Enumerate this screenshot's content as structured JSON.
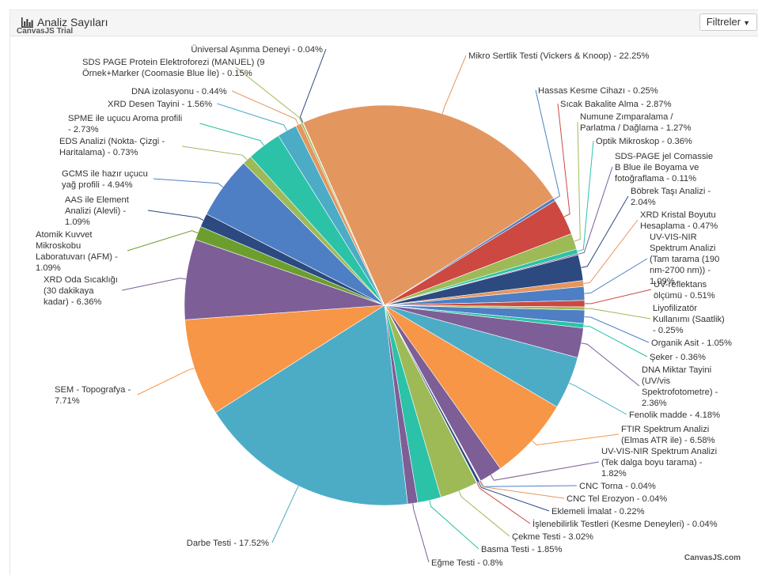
{
  "header": {
    "title": "Analiz Sayıları",
    "filter_label": "Filtreler"
  },
  "watermark": {
    "trial": "CanvasJS Trial",
    "brand": "CanvasJS.com"
  },
  "colors": {
    "header_bg": "#f5f5f5",
    "label_text": "#333333"
  },
  "chart_data": {
    "type": "pie",
    "title": "Analiz Sayıları",
    "start_angle_deg": 246,
    "unit": "%",
    "slices": [
      {
        "name": "Mikro Sertlik Testi (Vickers & Knoop)",
        "value": 22.25,
        "color": "#E4965F",
        "label": [
          "Mikro Sertlik Testi (Vickers & Knoop) - 22.25%"
        ]
      },
      {
        "name": "Hassas Kesme Cihazı",
        "value": 0.25,
        "color": "#4E7FC4",
        "label": [
          "Hassas Kesme Cihazı - 0.25%"
        ]
      },
      {
        "name": "Sıcak Bakalite Alma",
        "value": 2.87,
        "color": "#CC4840",
        "label": [
          "Sıcak Bakalite Alma - 2.87%"
        ]
      },
      {
        "name": "Numune Zımparalama / Parlatma / Dağlama",
        "value": 1.27,
        "color": "#9DBA57",
        "label": [
          "Numune Zımparalama /",
          "Parlatma / Dağlama - 1.27%"
        ]
      },
      {
        "name": "Optik Mikroskop",
        "value": 0.36,
        "color": "#2BC2A8",
        "label": [
          "Optik Mikroskop - 0.36%"
        ]
      },
      {
        "name": "SDS-PAGE jel Comassie B Blue ile Boyama ve fotoğraflama",
        "value": 0.11,
        "color": "#7E5E96",
        "label": [
          "SDS-PAGE jel Comassie",
          "B Blue ile Boyama ve",
          "fotoğraflama - 0.11%"
        ]
      },
      {
        "name": "Böbrek Taşı Analizi",
        "value": 2.04,
        "color": "#2C4A80",
        "label": [
          "Böbrek Taşı Analizi -",
          "2.04%"
        ]
      },
      {
        "name": "XRD Kristal Boyutu Hesaplama",
        "value": 0.47,
        "color": "#E4965F",
        "label": [
          "XRD Kristal Boyutu",
          "Hesaplama - 0.47%"
        ]
      },
      {
        "name": "UV-VIS-NIR Spektrum Analizi (Tam tarama (190 nm-2700 nm))",
        "value": 1.09,
        "color": "#4E7FC4",
        "label": [
          "UV-VIS-NIR",
          "Spektrum Analizi",
          "(Tam tarama (190",
          "nm-2700 nm)) -",
          "1.09%"
        ]
      },
      {
        "name": "UV-reflektans ölçümü",
        "value": 0.51,
        "color": "#CC4840",
        "label": [
          "UV-reflektans",
          "ölçümü - 0.51%"
        ]
      },
      {
        "name": "Liyofilizatör Kullanımı (Saatlik)",
        "value": 0.25,
        "color": "#9DBA57",
        "label": [
          "Liyofilizatör",
          "Kullanımı (Saatlik)",
          "- 0.25%"
        ]
      },
      {
        "name": "Organik Asit",
        "value": 1.05,
        "color": "#4E7FC4",
        "label": [
          "Organik Asit - 1.05%"
        ]
      },
      {
        "name": "Şeker",
        "value": 0.36,
        "color": "#2BC2A8",
        "label": [
          "Şeker - 0.36%"
        ]
      },
      {
        "name": "DNA Miktar Tayini (UV/vis Spektrofotometre)",
        "value": 2.36,
        "color": "#7E5E96",
        "label": [
          "DNA Miktar Tayini",
          "(UV/vis",
          "Spektrofotometre) -",
          "2.36%"
        ]
      },
      {
        "name": "Fenolik madde",
        "value": 4.18,
        "color": "#4CACC6",
        "label": [
          "Fenolik madde - 4.18%"
        ]
      },
      {
        "name": "FTIR Spektrum Analizi (Elmas ATR ile)",
        "value": 6.58,
        "color": "#F79646",
        "label": [
          "FTIR Spektrum Analizi",
          "(Elmas ATR ile) - 6.58%"
        ]
      },
      {
        "name": "UV-VIS-NIR Spektrum Analizi (Tek dalga boyu tarama)",
        "value": 1.82,
        "color": "#7E5E96",
        "label": [
          "UV-VIS-NIR Spektrum Analizi",
          "(Tek dalga boyu tarama) -",
          "1.82%"
        ]
      },
      {
        "name": "CNC Torna",
        "value": 0.04,
        "color": "#4E7FC4",
        "label": [
          "CNC Torna - 0.04%"
        ]
      },
      {
        "name": "CNC Tel Erozyon",
        "value": 0.04,
        "color": "#E4965F",
        "label": [
          "CNC Tel Erozyon - 0.04%"
        ]
      },
      {
        "name": "Eklemeli İmalat",
        "value": 0.22,
        "color": "#2C4A80",
        "label": [
          "Eklemeli İmalat - 0.22%"
        ]
      },
      {
        "name": "İşlenebilirlik Testleri (Kesme Deneyleri)",
        "value": 0.04,
        "color": "#CC4840",
        "label": [
          "İşlenebilirlik Testleri (Kesme Deneyleri) - 0.04%"
        ]
      },
      {
        "name": "Çekme Testi",
        "value": 3.02,
        "color": "#9DBA57",
        "label": [
          "Çekme Testi - 3.02%"
        ]
      },
      {
        "name": "Basma Testi",
        "value": 1.85,
        "color": "#2BC2A8",
        "label": [
          "Basma Testi - 1.85%"
        ]
      },
      {
        "name": "Eğme Testi",
        "value": 0.8,
        "color": "#7E5E96",
        "label": [
          "Eğme Testi - 0.8%"
        ]
      },
      {
        "name": "Darbe Testi",
        "value": 17.52,
        "color": "#4CACC6",
        "label": [
          "Darbe Testi - 17.52%"
        ]
      },
      {
        "name": "SEM - Topografya",
        "value": 7.71,
        "color": "#F79646",
        "label": [
          "SEM - Topografya -",
          "7.71%"
        ]
      },
      {
        "name": "XRD Oda Sıcaklığı (30 dakikaya kadar)",
        "value": 6.36,
        "color": "#7E5E96",
        "label": [
          "XRD Oda Sıcaklığı",
          "(30 dakikaya",
          "kadar) - 6.36%"
        ]
      },
      {
        "name": "Atomik Kuvvet Mikroskobu Laboratuvarı (AFM)",
        "value": 1.09,
        "color": "#6C9E2E",
        "label": [
          "Atomik Kuvvet",
          "Mikroskobu",
          "Laboratuvarı (AFM) -",
          "1.09%"
        ]
      },
      {
        "name": "AAS ile Element Analizi (Alevli)",
        "value": 1.09,
        "color": "#2C4A80",
        "label": [
          "AAS ile Element",
          "Analizi (Alevli) -",
          "1.09%"
        ]
      },
      {
        "name": "GCMS ile hazır uçucu yağ profili",
        "value": 4.94,
        "color": "#4E7FC4",
        "label": [
          "GCMS ile hazır uçucu",
          "yağ  profili - 4.94%"
        ]
      },
      {
        "name": "EDS Analizi (Nokta- Çizgi - Haritalama)",
        "value": 0.73,
        "color": "#9DBA57",
        "label": [
          "EDS Analizi (Nokta- Çizgi -",
          "Haritalama) - 0.73%"
        ]
      },
      {
        "name": "SPME ile uçucu Aroma profili",
        "value": 2.73,
        "color": "#2BC2A8",
        "label": [
          "SPME ile  uçucu Aroma profili",
          "- 2.73%"
        ]
      },
      {
        "name": "XRD Desen Tayini",
        "value": 1.56,
        "color": "#4CACC6",
        "label": [
          "XRD Desen Tayini - 1.56%"
        ]
      },
      {
        "name": "DNA izolasyonu",
        "value": 0.44,
        "color": "#E4965F",
        "label": [
          "DNA izolasyonu - 0.44%"
        ]
      },
      {
        "name": "SDS PAGE Protein Elektroforezi (MANUEL) (9 Örnek+Marker (Coomasie Blue İle)",
        "value": 0.15,
        "color": "#9DBA57",
        "label": [
          "SDS PAGE Protein Elektroforezi (MANUEL) (9",
          "Örnek+Marker (Coomasie Blue İle) - 0.15%"
        ]
      },
      {
        "name": "Üniversal Aşınma Deneyi",
        "value": 0.04,
        "color": "#2C4A80",
        "label": [
          "Üniversal Aşınma Deneyi - 0.04%"
        ]
      }
    ]
  }
}
